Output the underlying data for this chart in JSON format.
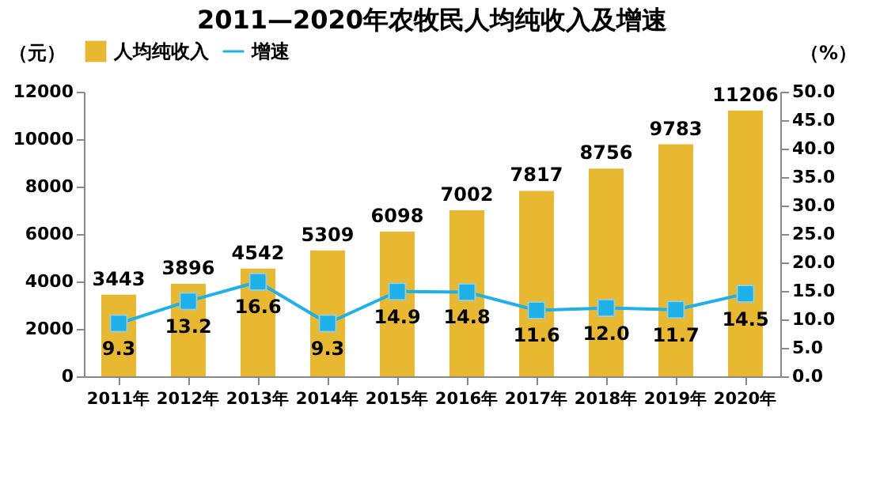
{
  "chart_data": {
    "type": "bar",
    "title": "2011—2020年农牧民人均纯收入及增速",
    "ylabel": "（元）",
    "y2label": "（%）",
    "categories": [
      "2011年",
      "2012年",
      "2013年",
      "2014年",
      "2015年",
      "2016年",
      "2017年",
      "2018年",
      "2019年",
      "2020年"
    ],
    "series": [
      {
        "name": "人均纯收入",
        "color": "#e8b830",
        "values": [
          3443,
          3896,
          4542,
          5309,
          6098,
          7002,
          7817,
          8756,
          9783,
          11206
        ],
        "value_labels": [
          "3443",
          "3896",
          "4542",
          "5309",
          "6098",
          "7002",
          "7817",
          "8756",
          "9783",
          "11206"
        ]
      },
      {
        "name": "增速",
        "type": "line",
        "axis": "y2",
        "color": "#1eb0e8",
        "marker": "square",
        "values": [
          9.3,
          13.2,
          16.6,
          9.3,
          14.9,
          14.8,
          11.6,
          12.0,
          11.7,
          14.5
        ],
        "value_labels": [
          "9.3",
          "13.2",
          "16.6",
          "9.3",
          "14.9",
          "14.8",
          "11.6",
          "12.0",
          "11.7",
          "14.5"
        ]
      }
    ],
    "ylim": [
      0,
      12000
    ],
    "yticks": [
      0,
      2000,
      4000,
      6000,
      8000,
      10000,
      12000
    ],
    "y2lim": [
      0,
      50
    ],
    "y2ticks": [
      {
        "value": 0,
        "label": "0.0"
      },
      {
        "value": 5,
        "label": "5.0"
      },
      {
        "value": 10,
        "label": "10.0"
      },
      {
        "value": 15,
        "label": "15.0"
      },
      {
        "value": 20,
        "label": "20.0"
      },
      {
        "value": 25,
        "label": "25.0"
      },
      {
        "value": 30,
        "label": "30.0"
      },
      {
        "value": 35,
        "label": "35.0"
      },
      {
        "value": 40,
        "label": "40.0"
      },
      {
        "value": 45,
        "label": "45.0"
      },
      {
        "value": 50,
        "label": "50.0"
      }
    ],
    "legend": "top",
    "grid": false
  }
}
